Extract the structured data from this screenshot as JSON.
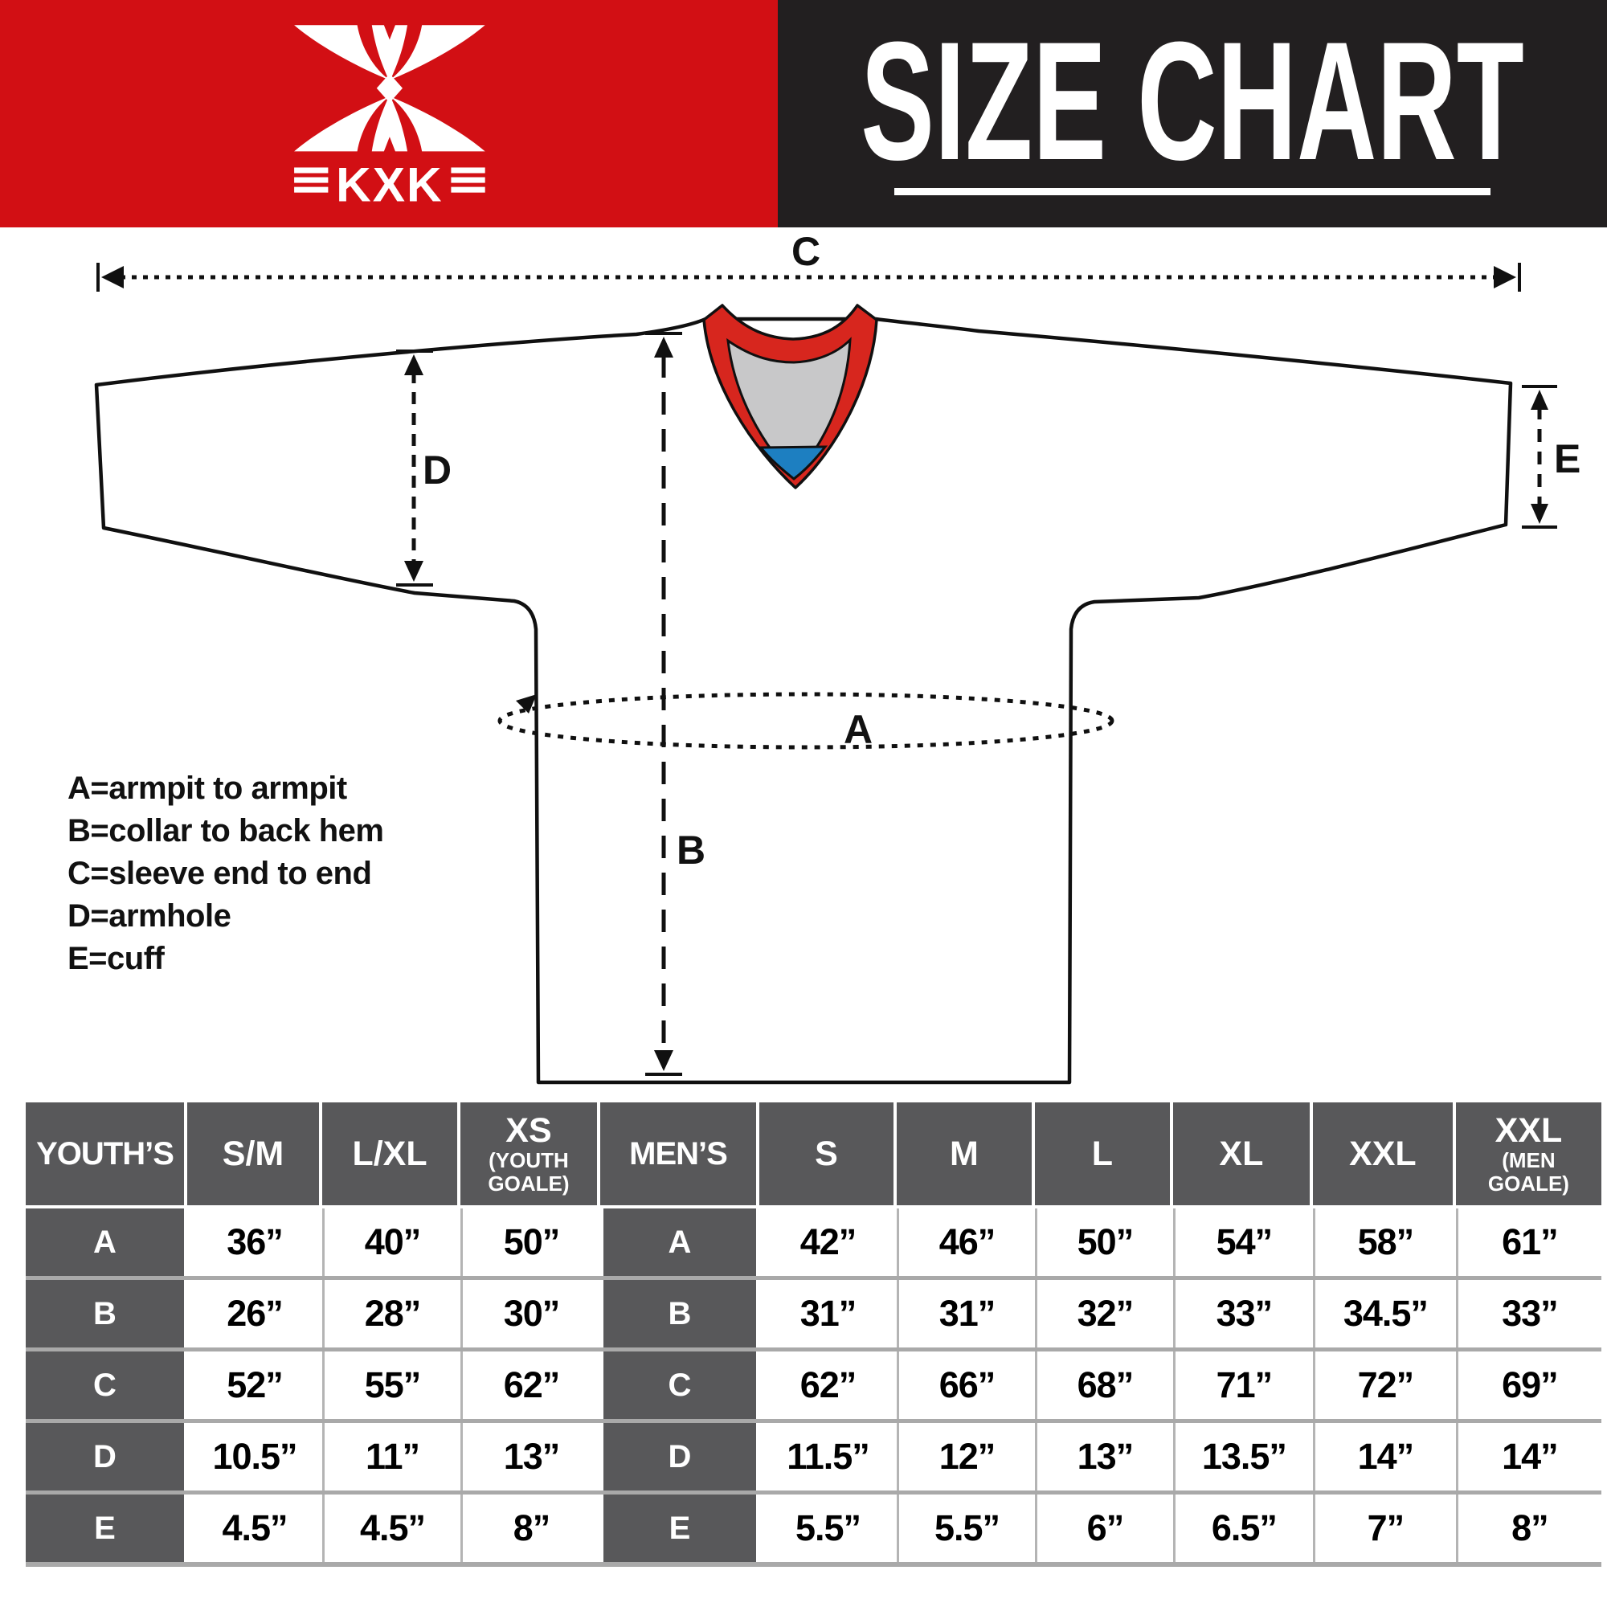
{
  "header": {
    "logo_text": "KXK",
    "title": "SIZE CHART"
  },
  "colors": {
    "brand_red": "#d20f14",
    "header_black": "#221f20",
    "collar_red": "#d7261e",
    "collar_gray": "#c8c8c9",
    "collar_blue": "#1d7fc1",
    "table_dark": "#58585a",
    "table_sep": "#a9a9a9",
    "cell_line": "#b4b4b4",
    "line_black": "#101010"
  },
  "diagram": {
    "labels": {
      "A": "A",
      "B": "B",
      "C": "C",
      "D": "D",
      "E": "E"
    },
    "legend": [
      "A=armpit to armpit",
      "B=collar to back hem",
      "C=sleeve end to end",
      "D=armhole",
      "E=cuff"
    ]
  },
  "size_table": {
    "youth_header": {
      "label": "YOUTH’S",
      "cols": [
        {
          "main": "S/M",
          "sub": ""
        },
        {
          "main": "L/XL",
          "sub": ""
        },
        {
          "main": "XS",
          "sub": "(YOUTH GOALE)"
        }
      ]
    },
    "men_header": {
      "label": "MEN’S",
      "cols": [
        {
          "main": "S",
          "sub": ""
        },
        {
          "main": "M",
          "sub": ""
        },
        {
          "main": "L",
          "sub": ""
        },
        {
          "main": "XL",
          "sub": ""
        },
        {
          "main": "XXL",
          "sub": ""
        },
        {
          "main": "XXL",
          "sub": "(MEN GOALE)"
        }
      ]
    },
    "rows": [
      {
        "key": "A",
        "youth": [
          "36”",
          "40”",
          "50”"
        ],
        "men": [
          "42”",
          "46”",
          "50”",
          "54”",
          "58”",
          "61”"
        ]
      },
      {
        "key": "B",
        "youth": [
          "26”",
          "28”",
          "30”"
        ],
        "men": [
          "31”",
          "31”",
          "32”",
          "33”",
          "34.5”",
          "33”"
        ]
      },
      {
        "key": "C",
        "youth": [
          "52”",
          "55”",
          "62”"
        ],
        "men": [
          "62”",
          "66”",
          "68”",
          "71”",
          "72”",
          "69”"
        ]
      },
      {
        "key": "D",
        "youth": [
          "10.5”",
          "11”",
          "13”"
        ],
        "men": [
          "11.5”",
          "12”",
          "13”",
          "13.5”",
          "14”",
          "14”"
        ]
      },
      {
        "key": "E",
        "youth": [
          "4.5”",
          "4.5”",
          "8”"
        ],
        "men": [
          "5.5”",
          "5.5”",
          "6”",
          "6.5”",
          "7”",
          "8”"
        ]
      }
    ]
  }
}
